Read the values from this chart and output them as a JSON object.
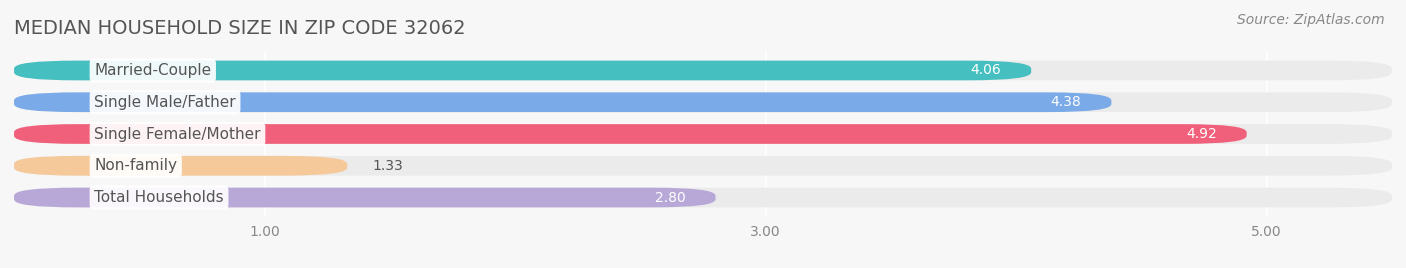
{
  "title": "MEDIAN HOUSEHOLD SIZE IN ZIP CODE 32062",
  "source": "Source: ZipAtlas.com",
  "categories": [
    "Married-Couple",
    "Single Male/Father",
    "Single Female/Mother",
    "Non-family",
    "Total Households"
  ],
  "values": [
    4.06,
    4.38,
    4.92,
    1.33,
    2.8
  ],
  "bar_colors": [
    "#45bfbf",
    "#7aaae8",
    "#f0607a",
    "#f5c99a",
    "#b8a8d8"
  ],
  "label_colors": [
    "white",
    "white",
    "white",
    "#555555",
    "#555555"
  ],
  "xlim_min": 0.0,
  "xlim_max": 5.5,
  "data_min": 1.0,
  "data_max": 5.0,
  "xticks": [
    1.0,
    3.0,
    5.0
  ],
  "background_color": "#f7f7f7",
  "bar_bg_color": "#ebebeb",
  "title_fontsize": 14,
  "source_fontsize": 10,
  "bar_height": 0.62,
  "value_fontsize": 10,
  "category_fontsize": 11,
  "label_bg_color": "#ffffff"
}
